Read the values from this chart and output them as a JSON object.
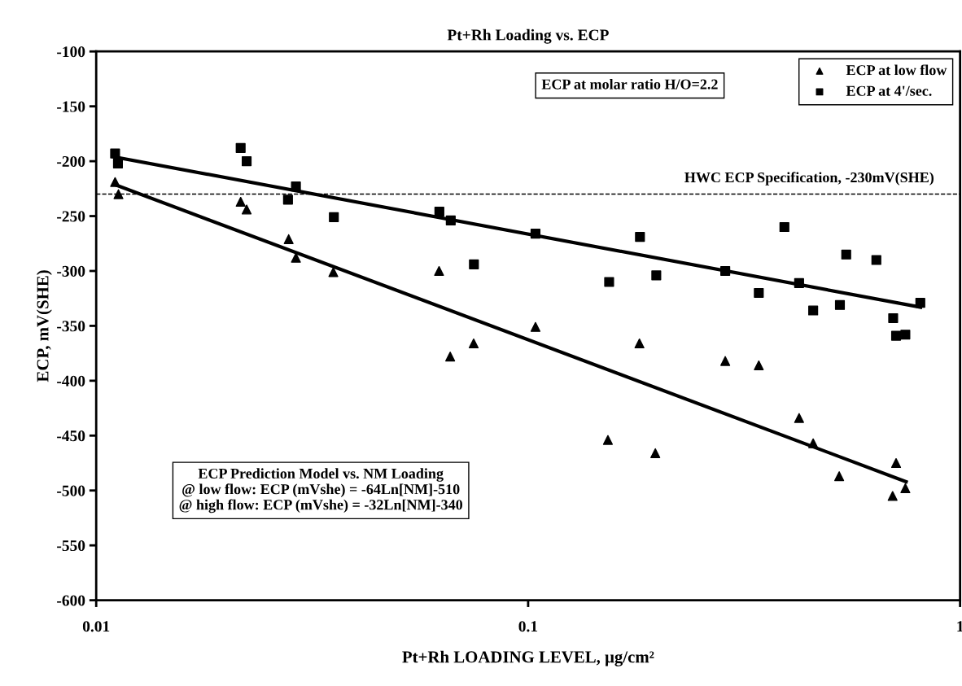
{
  "chart_data": {
    "type": "scatter",
    "title": "Pt+Rh Loading vs. ECP",
    "xlabel": "Pt+Rh LOADING LEVEL, μg/cm²",
    "ylabel": "ECP, mV(SHE)",
    "log": "x",
    "xlim": [
      0.01,
      1
    ],
    "xticks": [
      0.01,
      0.1,
      1
    ],
    "ylim": [
      -600,
      -100
    ],
    "yticks": [
      -100,
      -150,
      -200,
      -250,
      -300,
      -350,
      -400,
      -450,
      -500,
      -550,
      -600
    ],
    "grid": false,
    "legend": "top right",
    "series": [
      {
        "name": "ECP at low flow",
        "color": "#000000",
        "marker": "triangle",
        "x": [
          0.01106,
          0.01126,
          0.0216,
          0.0223,
          0.0279,
          0.029,
          0.0354,
          0.0622,
          0.066,
          0.0748,
          0.104,
          0.181,
          0.153,
          0.197,
          0.286,
          0.342,
          0.424,
          0.457,
          0.525,
          0.711,
          0.698,
          0.747
        ],
        "values": [
          -219,
          -230,
          -237,
          -244,
          -271,
          -288,
          -301,
          -300,
          -378,
          -366,
          -351,
          -366,
          -454,
          -466,
          -382,
          -386,
          -434,
          -457,
          -487,
          -475,
          -505,
          -498
        ]
      },
      {
        "name": "ECP at 4'/sec.",
        "color": "#000000",
        "marker": "square",
        "x": [
          0.01106,
          0.01123,
          0.0216,
          0.0223,
          0.029,
          0.0278,
          0.0355,
          0.0623,
          0.0662,
          0.0749,
          0.104,
          0.1815,
          0.154,
          0.198,
          0.286,
          0.392,
          0.424,
          0.342,
          0.545,
          0.64,
          0.457,
          0.527,
          0.809,
          0.7,
          0.711,
          0.747
        ],
        "values": [
          -193,
          -202,
          -188,
          -200,
          -223,
          -235,
          -251,
          -246,
          -254,
          -294,
          -266,
          -269,
          -310,
          -304,
          -300,
          -260,
          -311,
          -320,
          -285,
          -290,
          -336,
          -331,
          -329,
          -343,
          -359,
          -358
        ]
      },
      {
        "type": "line",
        "color": "#000000",
        "marker": "none",
        "line_style": "solid",
        "x": [
          0.011,
          0.75
        ],
        "values": [
          -221,
          -492
        ]
      },
      {
        "type": "line",
        "color": "#000000",
        "marker": "none",
        "line_style": "solid",
        "x": [
          0.011,
          0.81
        ],
        "values": [
          -196,
          -333
        ]
      }
    ],
    "ref_lines": [
      {
        "axis": "y",
        "value": -230,
        "label": "HWC ECP Specification, -230mV(SHE)",
        "color": "#000000",
        "line_style": "dashed"
      }
    ],
    "annotations": [
      "ECP at molar ratio H/O=2.2",
      "ECP Prediction Model vs. NM Loading\n@ low flow: ECP (mVshe) = -64Ln[NM]-510\n@ high flow: ECP (mVshe) = -32Ln[NM]-340"
    ]
  }
}
